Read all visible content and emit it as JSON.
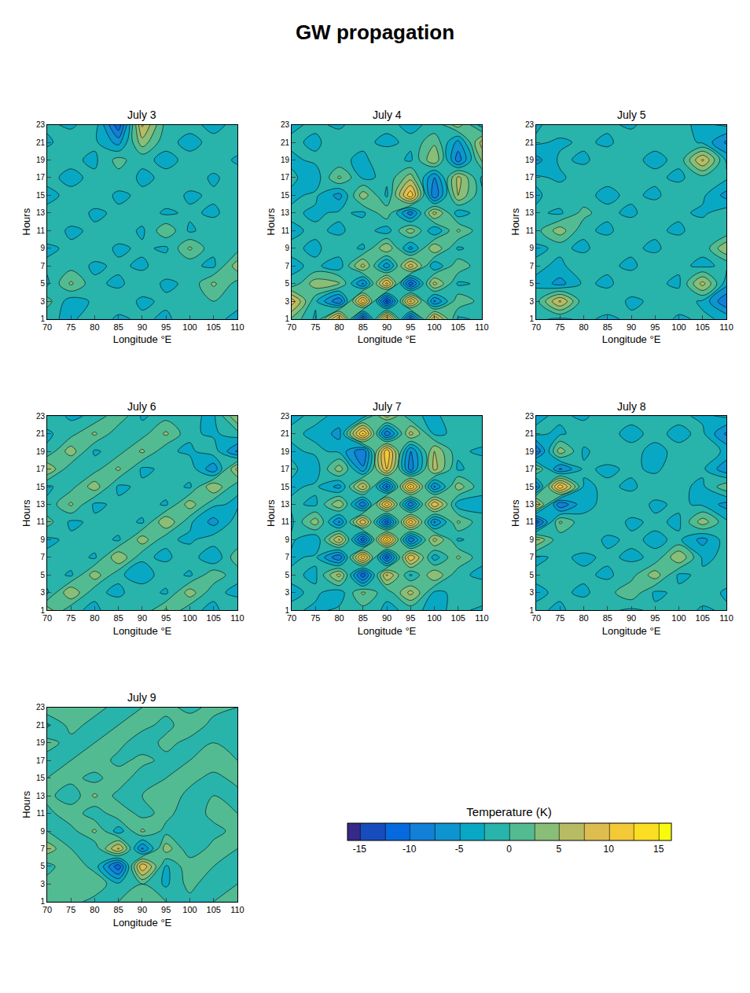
{
  "title": "GW propagation",
  "colorbar": {
    "title": "Temperature (K)",
    "range": [
      -15,
      15
    ],
    "ticks": [
      -15,
      -10,
      -5,
      0,
      5,
      10,
      15
    ]
  },
  "chart_data": [
    {
      "type": "contour",
      "title": "July 3",
      "xlabel": "Longitude °E",
      "ylabel": "Hours",
      "x": [
        70,
        75,
        80,
        85,
        90,
        95,
        100,
        105,
        110
      ],
      "y": [
        1,
        3,
        5,
        7,
        9,
        11,
        13,
        15,
        17,
        19,
        21,
        23
      ],
      "xlim": [
        70,
        110
      ],
      "xticks": [
        70,
        75,
        80,
        85,
        90,
        95,
        100,
        105,
        110
      ],
      "ylim": [
        1,
        23
      ],
      "yticks": [
        1,
        3,
        5,
        7,
        9,
        11,
        13,
        15,
        17,
        19,
        21,
        23
      ],
      "z": [
        [
          -2,
          -3,
          -1,
          -3,
          -2,
          -3,
          -1,
          -2,
          -3
        ],
        [
          1,
          -4,
          -2,
          -1,
          -3,
          -2,
          -1,
          0,
          -2
        ],
        [
          -3,
          3,
          -2,
          -3,
          -1,
          -3,
          -2,
          3,
          -1
        ],
        [
          -2,
          -1,
          -3,
          -2,
          -3,
          -1,
          -2,
          -3,
          4
        ],
        [
          -3,
          -2,
          -1,
          -3,
          -2,
          -3,
          3,
          -2,
          -1
        ],
        [
          -1,
          -3,
          -2,
          -1,
          -3,
          2,
          -3,
          -1,
          -2
        ],
        [
          -2,
          -1,
          -3,
          -2,
          -1,
          -3,
          -2,
          -3,
          -1
        ],
        [
          -3,
          -2,
          -1,
          -3,
          -2,
          -1,
          -3,
          -2,
          -2
        ],
        [
          -2,
          -3,
          -2,
          -1,
          -3,
          -2,
          -1,
          -3,
          -1
        ],
        [
          -1,
          -2,
          -3,
          1,
          -2,
          -3,
          -2,
          -1,
          -3
        ],
        [
          -3,
          -1,
          -2,
          -6,
          4,
          -2,
          -3,
          -2,
          -1
        ],
        [
          -2,
          -3,
          -1,
          -12,
          8,
          -1,
          -2,
          -3,
          -2
        ]
      ]
    },
    {
      "type": "contour",
      "title": "July 4",
      "xlabel": "Longitude °E",
      "ylabel": "Hours",
      "x": [
        70,
        75,
        80,
        85,
        90,
        95,
        100,
        105,
        110
      ],
      "y": [
        1,
        3,
        5,
        7,
        9,
        11,
        13,
        15,
        17,
        19,
        21,
        23
      ],
      "xlim": [
        70,
        110
      ],
      "xticks": [
        70,
        75,
        80,
        85,
        90,
        95,
        100,
        105,
        110
      ],
      "ylim": [
        1,
        23
      ],
      "yticks": [
        1,
        3,
        5,
        7,
        9,
        11,
        13,
        15,
        17,
        19,
        21,
        23
      ],
      "z": [
        [
          2,
          -3,
          12,
          -14,
          13,
          -12,
          10,
          -3,
          -2
        ],
        [
          9,
          -2,
          -10,
          12,
          -14,
          11,
          -8,
          2,
          -1
        ],
        [
          -2,
          4,
          3,
          -8,
          11,
          -12,
          6,
          -3,
          -2
        ],
        [
          -3,
          -2,
          -4,
          6,
          -7,
          9,
          -5,
          2,
          -2
        ],
        [
          -2,
          -3,
          -1,
          -3,
          5,
          -6,
          5,
          -3,
          -1
        ],
        [
          -3,
          -2,
          -3,
          -1,
          -4,
          4,
          -5,
          3,
          -2
        ],
        [
          -2,
          -3,
          -2,
          -3,
          2,
          -9,
          6,
          -4,
          -1
        ],
        [
          -3,
          -2,
          -6,
          4,
          -3,
          12,
          -10,
          5,
          -2
        ],
        [
          -2,
          -4,
          3,
          -3,
          -2,
          4,
          -8,
          6,
          -3
        ],
        [
          -3,
          -2,
          -2,
          -3,
          -1,
          -3,
          5,
          -9,
          3
        ],
        [
          -2,
          -3,
          -1,
          -2,
          -3,
          -2,
          2,
          -6,
          6
        ],
        [
          -3,
          -2,
          -3,
          -1,
          -2,
          -3,
          -2,
          4,
          -4
        ]
      ]
    },
    {
      "type": "contour",
      "title": "July 5",
      "xlabel": "Longitude °E",
      "ylabel": "Hours",
      "x": [
        70,
        75,
        80,
        85,
        90,
        95,
        100,
        105,
        110
      ],
      "y": [
        1,
        3,
        5,
        7,
        9,
        11,
        13,
        15,
        17,
        19,
        21,
        23
      ],
      "xlim": [
        70,
        110
      ],
      "xticks": [
        70,
        75,
        80,
        85,
        90,
        95,
        100,
        105,
        110
      ],
      "ylim": [
        1,
        23
      ],
      "yticks": [
        1,
        3,
        5,
        7,
        9,
        11,
        13,
        15,
        17,
        19,
        21,
        23
      ],
      "z": [
        [
          -2,
          -3,
          -2,
          -3,
          -2,
          -1,
          -3,
          -2,
          -3
        ],
        [
          -1,
          8,
          -2,
          -1,
          -3,
          -2,
          -1,
          -3,
          -10
        ],
        [
          -3,
          -6,
          -2,
          -3,
          -1,
          -2,
          -3,
          6,
          -4
        ],
        [
          -2,
          -3,
          -1,
          -2,
          -3,
          -1,
          -2,
          -3,
          -2
        ],
        [
          -3,
          -2,
          -3,
          -1,
          -2,
          -3,
          -1,
          -2,
          5
        ],
        [
          -1,
          4,
          -2,
          -3,
          -1,
          -2,
          -3,
          -1,
          -2
        ],
        [
          -2,
          -3,
          1,
          -2,
          -3,
          -1,
          -2,
          -3,
          -1
        ],
        [
          -3,
          -1,
          -2,
          -3,
          -2,
          -3,
          -1,
          -2,
          -6
        ],
        [
          -2,
          -3,
          -1,
          -2,
          -1,
          -2,
          -3,
          -1,
          -2
        ],
        [
          -6,
          -2,
          -3,
          -1,
          -2,
          -3,
          -2,
          8,
          -3
        ],
        [
          -2,
          -3,
          -2,
          -3,
          -1,
          -2,
          -1,
          -3,
          -8
        ],
        [
          -3,
          -1,
          -2,
          -2,
          -3,
          -1,
          -2,
          -3,
          -2
        ]
      ]
    },
    {
      "type": "contour",
      "title": "July 6",
      "xlabel": "Longitude °E",
      "ylabel": "Hours",
      "x": [
        70,
        75,
        80,
        85,
        90,
        95,
        100,
        105,
        110
      ],
      "y": [
        1,
        3,
        5,
        7,
        9,
        11,
        13,
        15,
        17,
        19,
        21,
        23
      ],
      "xlim": [
        70,
        110
      ],
      "xticks": [
        70,
        75,
        80,
        85,
        90,
        95,
        100,
        105,
        110
      ],
      "ylim": [
        1,
        23
      ],
      "yticks": [
        1,
        3,
        5,
        7,
        9,
        11,
        13,
        15,
        17,
        19,
        21,
        23
      ],
      "z": [
        [
          4,
          -2,
          -3,
          -1,
          -2,
          3,
          -2,
          -3,
          -1
        ],
        [
          -3,
          5,
          -2,
          -3,
          -1,
          -3,
          4,
          -2,
          -3
        ],
        [
          -1,
          -3,
          4,
          -2,
          -4,
          -1,
          -3,
          2,
          -2
        ],
        [
          -2,
          -1,
          -3,
          5,
          -2,
          -3,
          -1,
          -5,
          2
        ],
        [
          -3,
          -2,
          -1,
          -3,
          4,
          -2,
          -3,
          -1,
          -2
        ],
        [
          1,
          -3,
          -2,
          -1,
          -3,
          5,
          -2,
          -6,
          -1
        ],
        [
          -2,
          3,
          -3,
          -2,
          -1,
          -3,
          4,
          -2,
          -3
        ],
        [
          -3,
          -1,
          4,
          -3,
          -2,
          -1,
          -3,
          5,
          -2
        ],
        [
          5,
          -2,
          -1,
          3,
          -3,
          -2,
          -1,
          -7,
          6
        ],
        [
          -2,
          4,
          -3,
          -1,
          3,
          -2,
          -3,
          -1,
          -8
        ],
        [
          -3,
          -1,
          3,
          -2,
          -1,
          3,
          -2,
          -3,
          -1
        ],
        [
          -1,
          -3,
          -2,
          2,
          -3,
          -1,
          -2,
          -3,
          5
        ]
      ]
    },
    {
      "type": "contour",
      "title": "July 7",
      "xlabel": "Longitude °E",
      "ylabel": "Hours",
      "x": [
        70,
        75,
        80,
        85,
        90,
        95,
        100,
        105,
        110
      ],
      "y": [
        1,
        3,
        5,
        7,
        9,
        11,
        13,
        15,
        17,
        19,
        21,
        23
      ],
      "xlim": [
        70,
        110
      ],
      "xticks": [
        70,
        75,
        80,
        85,
        90,
        95,
        100,
        105,
        110
      ],
      "ylim": [
        1,
        23
      ],
      "yticks": [
        1,
        3,
        5,
        7,
        9,
        11,
        13,
        15,
        17,
        19,
        21,
        23
      ],
      "z": [
        [
          -2,
          -3,
          -2,
          -1,
          -3,
          -2,
          -3,
          -2,
          -3
        ],
        [
          -3,
          -2,
          -4,
          3,
          -2,
          6,
          -3,
          -2,
          -1
        ],
        [
          -2,
          -3,
          6,
          -12,
          8,
          -3,
          5,
          -2,
          -3
        ],
        [
          -3,
          -2,
          -10,
          12,
          -12,
          10,
          -4,
          3,
          -2
        ],
        [
          -2,
          -5,
          8,
          -12,
          14,
          -10,
          6,
          -3,
          -1
        ],
        [
          -3,
          4,
          -8,
          10,
          -12,
          12,
          -8,
          3,
          -2
        ],
        [
          -2,
          -3,
          5,
          -10,
          12,
          -10,
          10,
          -4,
          -3
        ],
        [
          -3,
          -2,
          -6,
          8,
          -11,
          13,
          -8,
          4,
          -2
        ],
        [
          -2,
          -4,
          4,
          -7,
          10,
          -9,
          6,
          -3,
          -1
        ],
        [
          -3,
          -2,
          -3,
          -10,
          12,
          -8,
          5,
          -2,
          -3
        ],
        [
          -2,
          -3,
          -6,
          13,
          -10,
          6,
          -3,
          -2,
          -1
        ],
        [
          -3,
          -2,
          -3,
          -4,
          6,
          -2,
          -3,
          -1,
          -2
        ]
      ]
    },
    {
      "type": "contour",
      "title": "July 8",
      "xlabel": "Longitude °E",
      "ylabel": "Hours",
      "x": [
        70,
        75,
        80,
        85,
        90,
        95,
        100,
        105,
        110
      ],
      "y": [
        1,
        3,
        5,
        7,
        9,
        11,
        13,
        15,
        17,
        19,
        21,
        23
      ],
      "xlim": [
        70,
        110
      ],
      "xticks": [
        70,
        75,
        80,
        85,
        90,
        95,
        100,
        105,
        110
      ],
      "ylim": [
        1,
        23
      ],
      "yticks": [
        1,
        3,
        5,
        7,
        9,
        11,
        13,
        15,
        17,
        19,
        21,
        23
      ],
      "z": [
        [
          -2,
          -3,
          -1,
          -2,
          -3,
          -2,
          -1,
          -3,
          -2
        ],
        [
          -3,
          -2,
          -3,
          -1,
          2,
          -3,
          -2,
          -1,
          -3
        ],
        [
          -2,
          -1,
          -2,
          -3,
          -1,
          4,
          -3,
          -2,
          -1
        ],
        [
          -3,
          -2,
          -3,
          -2,
          -3,
          -2,
          5,
          -3,
          -2
        ],
        [
          5,
          -2,
          -1,
          -3,
          -2,
          -3,
          -2,
          -6,
          -1
        ],
        [
          -12,
          3,
          -2,
          -1,
          -3,
          -2,
          -3,
          4,
          -2
        ],
        [
          8,
          -10,
          -3,
          -2,
          -1,
          -3,
          -2,
          -3,
          -6
        ],
        [
          -8,
          12,
          -3,
          -2,
          -3,
          -1,
          -2,
          -3,
          2
        ],
        [
          3,
          -8,
          -2,
          -3,
          -2,
          -3,
          -1,
          -2,
          -7
        ],
        [
          -10,
          4,
          -3,
          -1,
          -2,
          -3,
          -2,
          -1,
          -3
        ],
        [
          -2,
          -3,
          -1,
          -2,
          -3,
          -2,
          -3,
          -2,
          -8
        ],
        [
          -3,
          -2,
          -3,
          -1,
          -2,
          -1,
          -2,
          -3,
          -2
        ]
      ]
    },
    {
      "type": "contour",
      "title": "July 9",
      "xlabel": "Longitude °E",
      "ylabel": "Hours",
      "x": [
        70,
        75,
        80,
        85,
        90,
        95,
        100,
        105,
        110
      ],
      "y": [
        1,
        3,
        5,
        7,
        9,
        11,
        13,
        15,
        17,
        19,
        21,
        23
      ],
      "xlim": [
        70,
        110
      ],
      "xticks": [
        70,
        75,
        80,
        85,
        90,
        95,
        100,
        105,
        110
      ],
      "ylim": [
        1,
        23
      ],
      "yticks": [
        1,
        3,
        5,
        7,
        9,
        11,
        13,
        15,
        17,
        19,
        21,
        23
      ],
      "z": [
        [
          0,
          1,
          -1,
          0,
          1,
          0,
          -1,
          0,
          1
        ],
        [
          1,
          0,
          2,
          -2,
          0,
          -3,
          1,
          -2,
          0
        ],
        [
          -1,
          2,
          -1,
          -12,
          10,
          -3,
          2,
          0,
          -1
        ],
        [
          4,
          0,
          -2,
          8,
          -8,
          4,
          -2,
          1,
          0
        ],
        [
          0,
          -1,
          3,
          -4,
          3,
          -1,
          0,
          -1,
          1
        ],
        [
          -1,
          2,
          -2,
          2,
          -1,
          1,
          -2,
          1,
          0
        ],
        [
          1,
          -2,
          3,
          -1,
          0,
          2,
          -1,
          0,
          -1
        ],
        [
          0,
          1,
          -1,
          2,
          -2,
          0,
          1,
          -1,
          1
        ],
        [
          -1,
          0,
          2,
          -1,
          1,
          -1,
          0,
          2,
          0
        ],
        [
          1,
          -1,
          0,
          1,
          -2,
          1,
          -1,
          0,
          -1
        ],
        [
          -3,
          1,
          -1,
          0,
          1,
          -1,
          2,
          -1,
          0
        ],
        [
          2,
          0,
          1,
          -1,
          0,
          1,
          -1,
          1,
          0
        ]
      ]
    }
  ]
}
